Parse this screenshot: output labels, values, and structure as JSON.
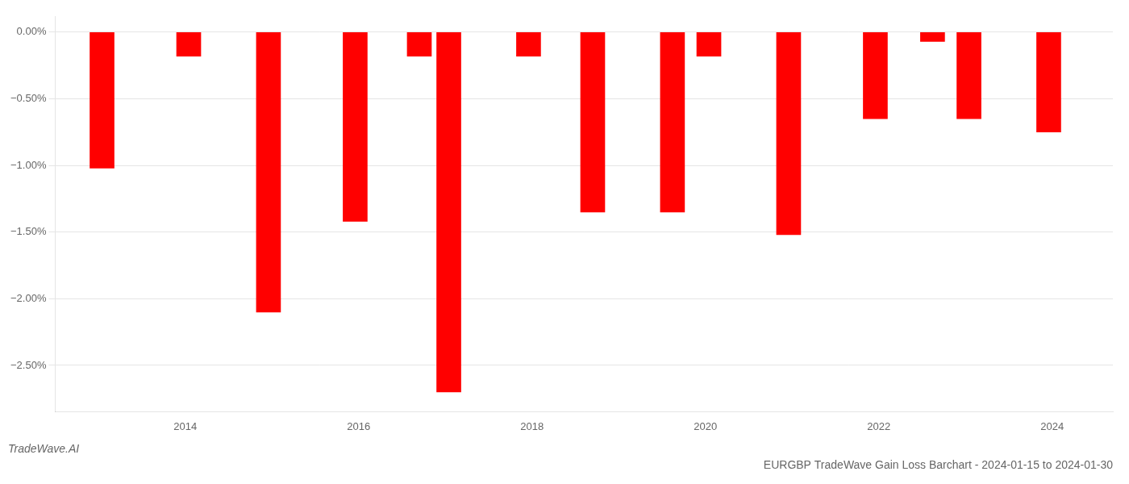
{
  "chart_data": {
    "type": "bar",
    "title": "EURGBP TradeWave Gain Loss Barchart - 2024-01-15 to 2024-01-30",
    "annotations": [
      "TradeWave.AI"
    ],
    "x": [
      2013.04,
      2014.04,
      2014.96,
      2015.96,
      2016.7,
      2017.04,
      2017.96,
      2018.7,
      2019.62,
      2020.04,
      2020.96,
      2021.96,
      2022.62,
      2023.04,
      2023.96
    ],
    "values": [
      -1.02,
      -0.18,
      -2.1,
      -1.42,
      -0.18,
      -2.7,
      -0.18,
      -1.35,
      -1.35,
      -0.18,
      -1.52,
      -0.65,
      -0.07,
      -0.65,
      -0.75
    ],
    "color": "#ff0000",
    "xlim": [
      2012.5,
      2024.7
    ],
    "xticks": [
      2014,
      2016,
      2018,
      2020,
      2022,
      2024
    ],
    "ylim": [
      -2.85,
      0.12
    ],
    "yticks": [
      {
        "value": 0.0,
        "label": "0.00%"
      },
      {
        "value": -0.5,
        "label": "−0.50%"
      },
      {
        "value": -1.0,
        "label": "−1.00%"
      },
      {
        "value": -1.5,
        "label": "−1.50%"
      },
      {
        "value": -2.0,
        "label": "−2.00%"
      },
      {
        "value": -2.5,
        "label": "−2.50%"
      }
    ],
    "grid": true
  }
}
